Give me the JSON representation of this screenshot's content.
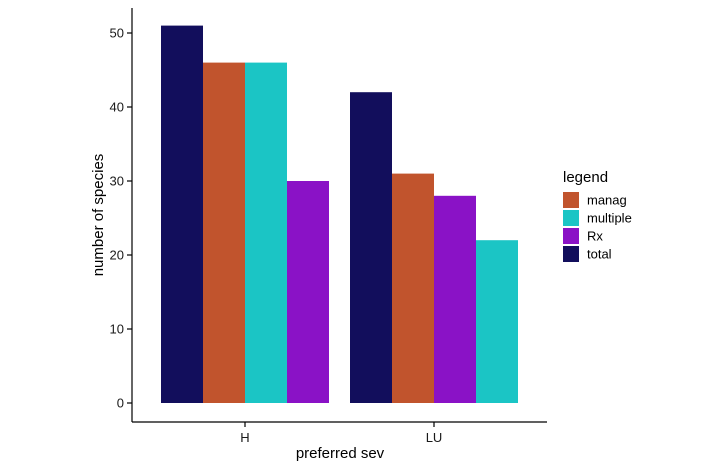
{
  "chart_data": {
    "type": "bar",
    "xlabel": "preferred sev",
    "ylabel": "number of species",
    "ylim": [
      0,
      53
    ],
    "yticks": [
      0,
      10,
      20,
      30,
      40,
      50
    ],
    "grid": false,
    "legend_placement": "right",
    "legend_title": "legend",
    "legend": [
      {
        "name": "manag",
        "color": "#C1542D"
      },
      {
        "name": "multiple",
        "color": "#1BC5C5"
      },
      {
        "name": "Rx",
        "color": "#8A12C6"
      },
      {
        "name": "total",
        "color": "#120E5C"
      }
    ],
    "groups": [
      {
        "category": "H",
        "bars": [
          {
            "series": "total",
            "value": 51
          },
          {
            "series": "manag",
            "value": 46
          },
          {
            "series": "multiple",
            "value": 46
          },
          {
            "series": "Rx",
            "value": 30
          }
        ]
      },
      {
        "category": "LU",
        "bars": [
          {
            "series": "total",
            "value": 42
          },
          {
            "series": "manag",
            "value": 31
          },
          {
            "series": "Rx",
            "value": 28
          },
          {
            "series": "multiple",
            "value": 22
          }
        ]
      }
    ]
  }
}
